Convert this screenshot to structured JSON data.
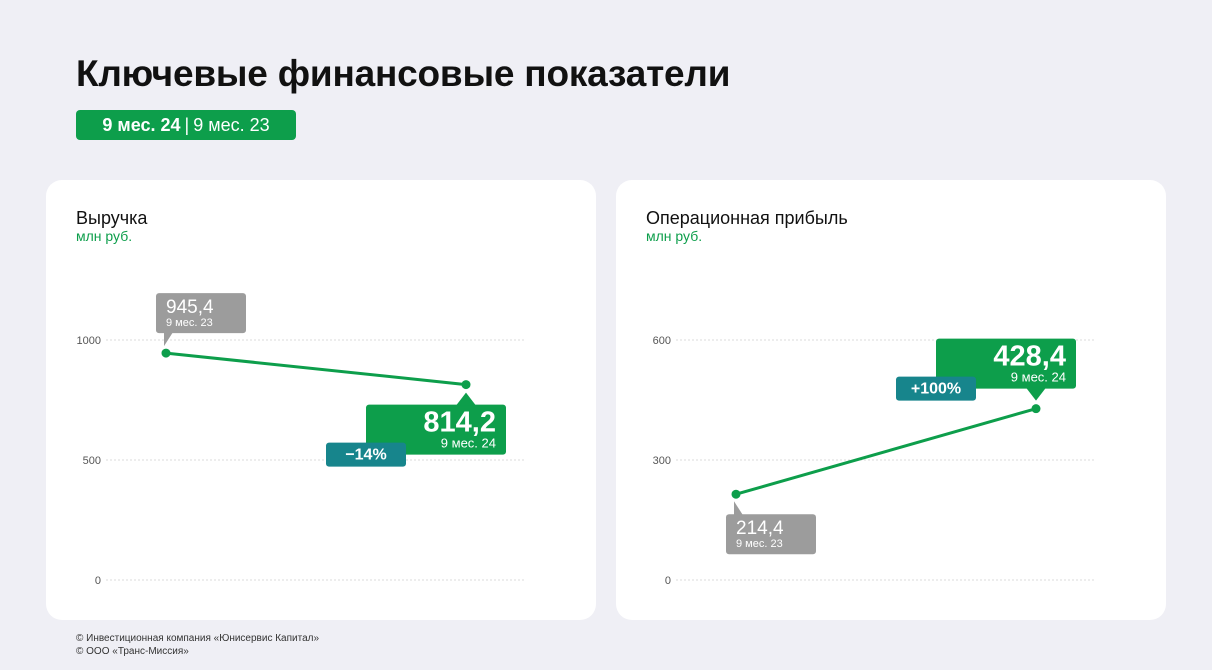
{
  "header": {
    "title": "Ключевые финансовые показатели",
    "period_current": "9 мес. 24",
    "period_separator": "|",
    "period_previous": "9 мес. 23"
  },
  "colors": {
    "accent": "#0d9e4b",
    "teal": "#17858c",
    "gray": "#9c9c9c",
    "grid": "#cfcfcf"
  },
  "chart_data": [
    {
      "type": "line",
      "title": "Выручка",
      "ylabel": "млн руб.",
      "ylim": [
        0,
        1000
      ],
      "yticks": [
        0,
        500,
        1000
      ],
      "ytick_labels": [
        "0",
        "500",
        "1000"
      ],
      "x": [
        "9 мес. 23",
        "9 мес. 24"
      ],
      "values": [
        945.4,
        814.2
      ],
      "value_labels": [
        "945,4",
        "814,2"
      ],
      "change_label": "−14%",
      "grid": true
    },
    {
      "type": "line",
      "title": "Операционная прибыль",
      "ylabel": "млн руб.",
      "ylim": [
        0,
        600
      ],
      "yticks": [
        0,
        300,
        600
      ],
      "ytick_labels": [
        "0",
        "300",
        "600"
      ],
      "x": [
        "9 мес. 23",
        "9 мес. 24"
      ],
      "values": [
        214.4,
        428.4
      ],
      "value_labels": [
        "214,4",
        "428,4"
      ],
      "change_label": "+100%",
      "grid": true
    }
  ],
  "footer": {
    "line1": "© Инвестиционная компания «Юнисервис Капитал»",
    "line2": "© ООО «Транс-Миссия»"
  }
}
